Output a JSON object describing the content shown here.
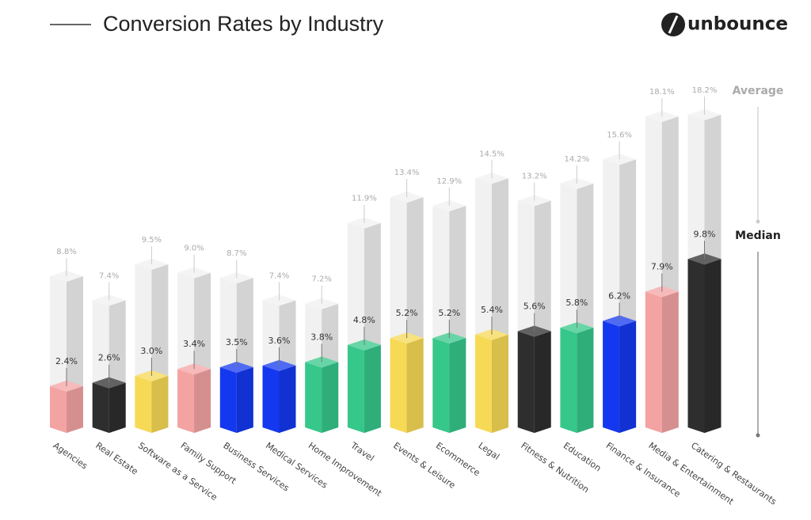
{
  "chart_data": {
    "type": "bar3d",
    "title": "Conversion Rates by Industry",
    "brand": "unbounce",
    "categories": [
      "Agencies",
      "Real Estate",
      "Software as a Service",
      "Family Support",
      "Business Services",
      "Medical Services",
      "Home Improvement",
      "Travel",
      "Events & Leisure",
      "Ecommerce",
      "Legal",
      "Fitness & Nutrition",
      "Education",
      "Finance & Insurance",
      "Media & Entertainment",
      "Catering & Restaurants"
    ],
    "series": [
      {
        "name": "Average",
        "color": "#f1f1f1",
        "values": [
          8.8,
          7.4,
          9.5,
          9.0,
          8.7,
          7.4,
          7.2,
          11.9,
          13.4,
          12.9,
          14.5,
          13.2,
          14.2,
          15.6,
          18.1,
          18.2
        ],
        "value_labels": [
          "8.8%",
          "7.4%",
          "9.5%",
          "9.0%",
          "8.7%",
          "7.4%",
          "7.2%",
          "11.9%",
          "13.4%",
          "12.9%",
          "14.5%",
          "13.2%",
          "14.2%",
          "15.6%",
          "18.1%",
          "18.2%"
        ]
      },
      {
        "name": "Median",
        "colors": [
          "#f4a3a3",
          "#2e2e2e",
          "#f6d955",
          "#f4a3a3",
          "#1438ef",
          "#1438ef",
          "#36c78a",
          "#36c78a",
          "#f6d955",
          "#36c78a",
          "#f6d955",
          "#2e2e2e",
          "#36c78a",
          "#1438ef",
          "#f4a3a3",
          "#2e2e2e"
        ],
        "values": [
          2.4,
          2.6,
          3.0,
          3.4,
          3.5,
          3.6,
          3.8,
          4.8,
          5.2,
          5.2,
          5.4,
          5.6,
          5.8,
          6.2,
          7.9,
          9.8
        ],
        "value_labels": [
          "2.4%",
          "2.6%",
          "3.0%",
          "3.4%",
          "3.5%",
          "3.6%",
          "3.8%",
          "4.8%",
          "5.2%",
          "5.2%",
          "5.4%",
          "5.6%",
          "5.8%",
          "6.2%",
          "7.9%",
          "9.8%"
        ]
      }
    ]
  }
}
